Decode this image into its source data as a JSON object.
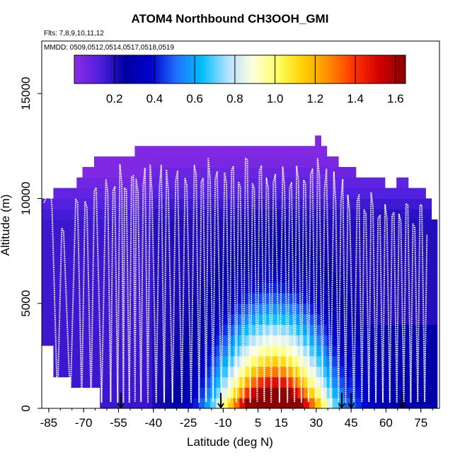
{
  "chart_data": {
    "type": "heatmap",
    "title": "ATOM4 Northbound CH3OOH_GMI",
    "subtitle_lines": [
      "Flts: 7,8,9,10,11,12",
      "MMDD: 0509,0512,0514,0517,0518,0519"
    ],
    "xlabel": "Latitude (deg N)",
    "ylabel": "Altitude (m)",
    "xlim": [
      -88,
      83
    ],
    "ylim": [
      0,
      17500
    ],
    "x_ticks": [
      -85,
      -70,
      -55,
      -40,
      -25,
      -10,
      5,
      15,
      30,
      45,
      60,
      75
    ],
    "x_tick_labels": [
      "-85",
      "-70",
      "-55",
      "-40",
      "-25",
      "-10",
      "5",
      "15",
      "30",
      "45",
      "60",
      "75"
    ],
    "y_ticks": [
      0,
      5000,
      10000,
      15000
    ],
    "y_tick_labels": [
      "0",
      "5000",
      "10000",
      "15000"
    ],
    "colorbar": {
      "range": [
        0,
        1.65
      ],
      "tick_values": [
        0.2,
        0.4,
        0.6,
        0.8,
        1.0,
        1.2,
        1.4,
        1.6
      ],
      "tick_labels": [
        "0.2",
        "0.4",
        "0.6",
        "0.8",
        "1.0",
        "1.2",
        "1.4",
        "1.6"
      ],
      "color_stops": [
        "#8a2be2",
        "#5020e0",
        "#0000a0",
        "#0000cd",
        "#2070ff",
        "#00bfff",
        "#b0e0ff",
        "#ffffe0",
        "#ffff60",
        "#ffd000",
        "#ff8c00",
        "#ff3000",
        "#d00000",
        "#8b0000"
      ]
    },
    "marker_latitudes": [
      -54,
      -11,
      41,
      45,
      67
    ],
    "marker_colors": {
      "ticks": "#000000",
      "flight_track": "#ffffff"
    }
  }
}
